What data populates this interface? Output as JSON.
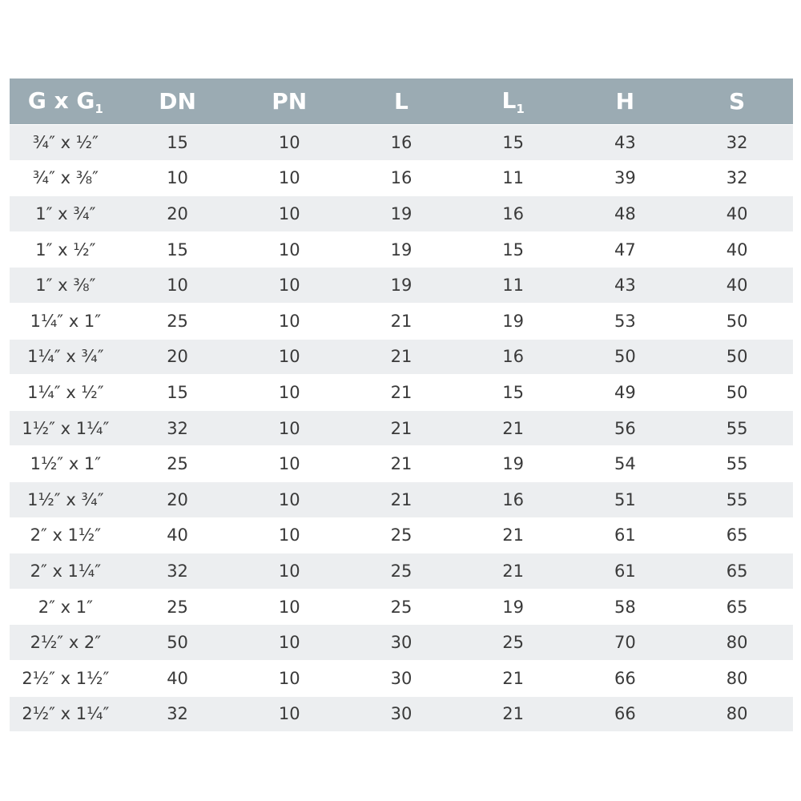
{
  "table": {
    "headers": [
      {
        "main": "G x G",
        "sub": "1"
      },
      {
        "main": "DN",
        "sub": ""
      },
      {
        "main": "PN",
        "sub": ""
      },
      {
        "main": "L",
        "sub": ""
      },
      {
        "main": "L",
        "sub": "1"
      },
      {
        "main": "H",
        "sub": ""
      },
      {
        "main": "S",
        "sub": ""
      }
    ],
    "rows": [
      [
        "¾″ x ½″",
        "15",
        "10",
        "16",
        "15",
        "43",
        "32"
      ],
      [
        "¾″ x ⅜″",
        "10",
        "10",
        "16",
        "11",
        "39",
        "32"
      ],
      [
        "1″ x ¾″",
        "20",
        "10",
        "19",
        "16",
        "48",
        "40"
      ],
      [
        "1″ x ½″",
        "15",
        "10",
        "19",
        "15",
        "47",
        "40"
      ],
      [
        "1″ x ⅜″",
        "10",
        "10",
        "19",
        "11",
        "43",
        "40"
      ],
      [
        "1¼″ x 1″",
        "25",
        "10",
        "21",
        "19",
        "53",
        "50"
      ],
      [
        "1¼″ x ¾″",
        "20",
        "10",
        "21",
        "16",
        "50",
        "50"
      ],
      [
        "1¼″ x ½″",
        "15",
        "10",
        "21",
        "15",
        "49",
        "50"
      ],
      [
        "1½″ x 1¼″",
        "32",
        "10",
        "21",
        "21",
        "56",
        "55"
      ],
      [
        "1½″ x 1″",
        "25",
        "10",
        "21",
        "19",
        "54",
        "55"
      ],
      [
        "1½″ x ¾″",
        "20",
        "10",
        "21",
        "16",
        "51",
        "55"
      ],
      [
        "2″ x 1½″",
        "40",
        "10",
        "25",
        "21",
        "61",
        "65"
      ],
      [
        "2″ x 1¼″",
        "32",
        "10",
        "25",
        "21",
        "61",
        "65"
      ],
      [
        "2″ x 1″",
        "25",
        "10",
        "25",
        "19",
        "58",
        "65"
      ],
      [
        "2½″ x 2″",
        "50",
        "10",
        "30",
        "25",
        "70",
        "80"
      ],
      [
        "2½″ x 1½″",
        "40",
        "10",
        "30",
        "21",
        "66",
        "80"
      ],
      [
        "2½″ x 1¼″",
        "32",
        "10",
        "30",
        "21",
        "66",
        "80"
      ]
    ],
    "colors": {
      "header_bg": "#9babb3",
      "stripe": "#eceef0",
      "text": "#3a3a3a"
    }
  }
}
